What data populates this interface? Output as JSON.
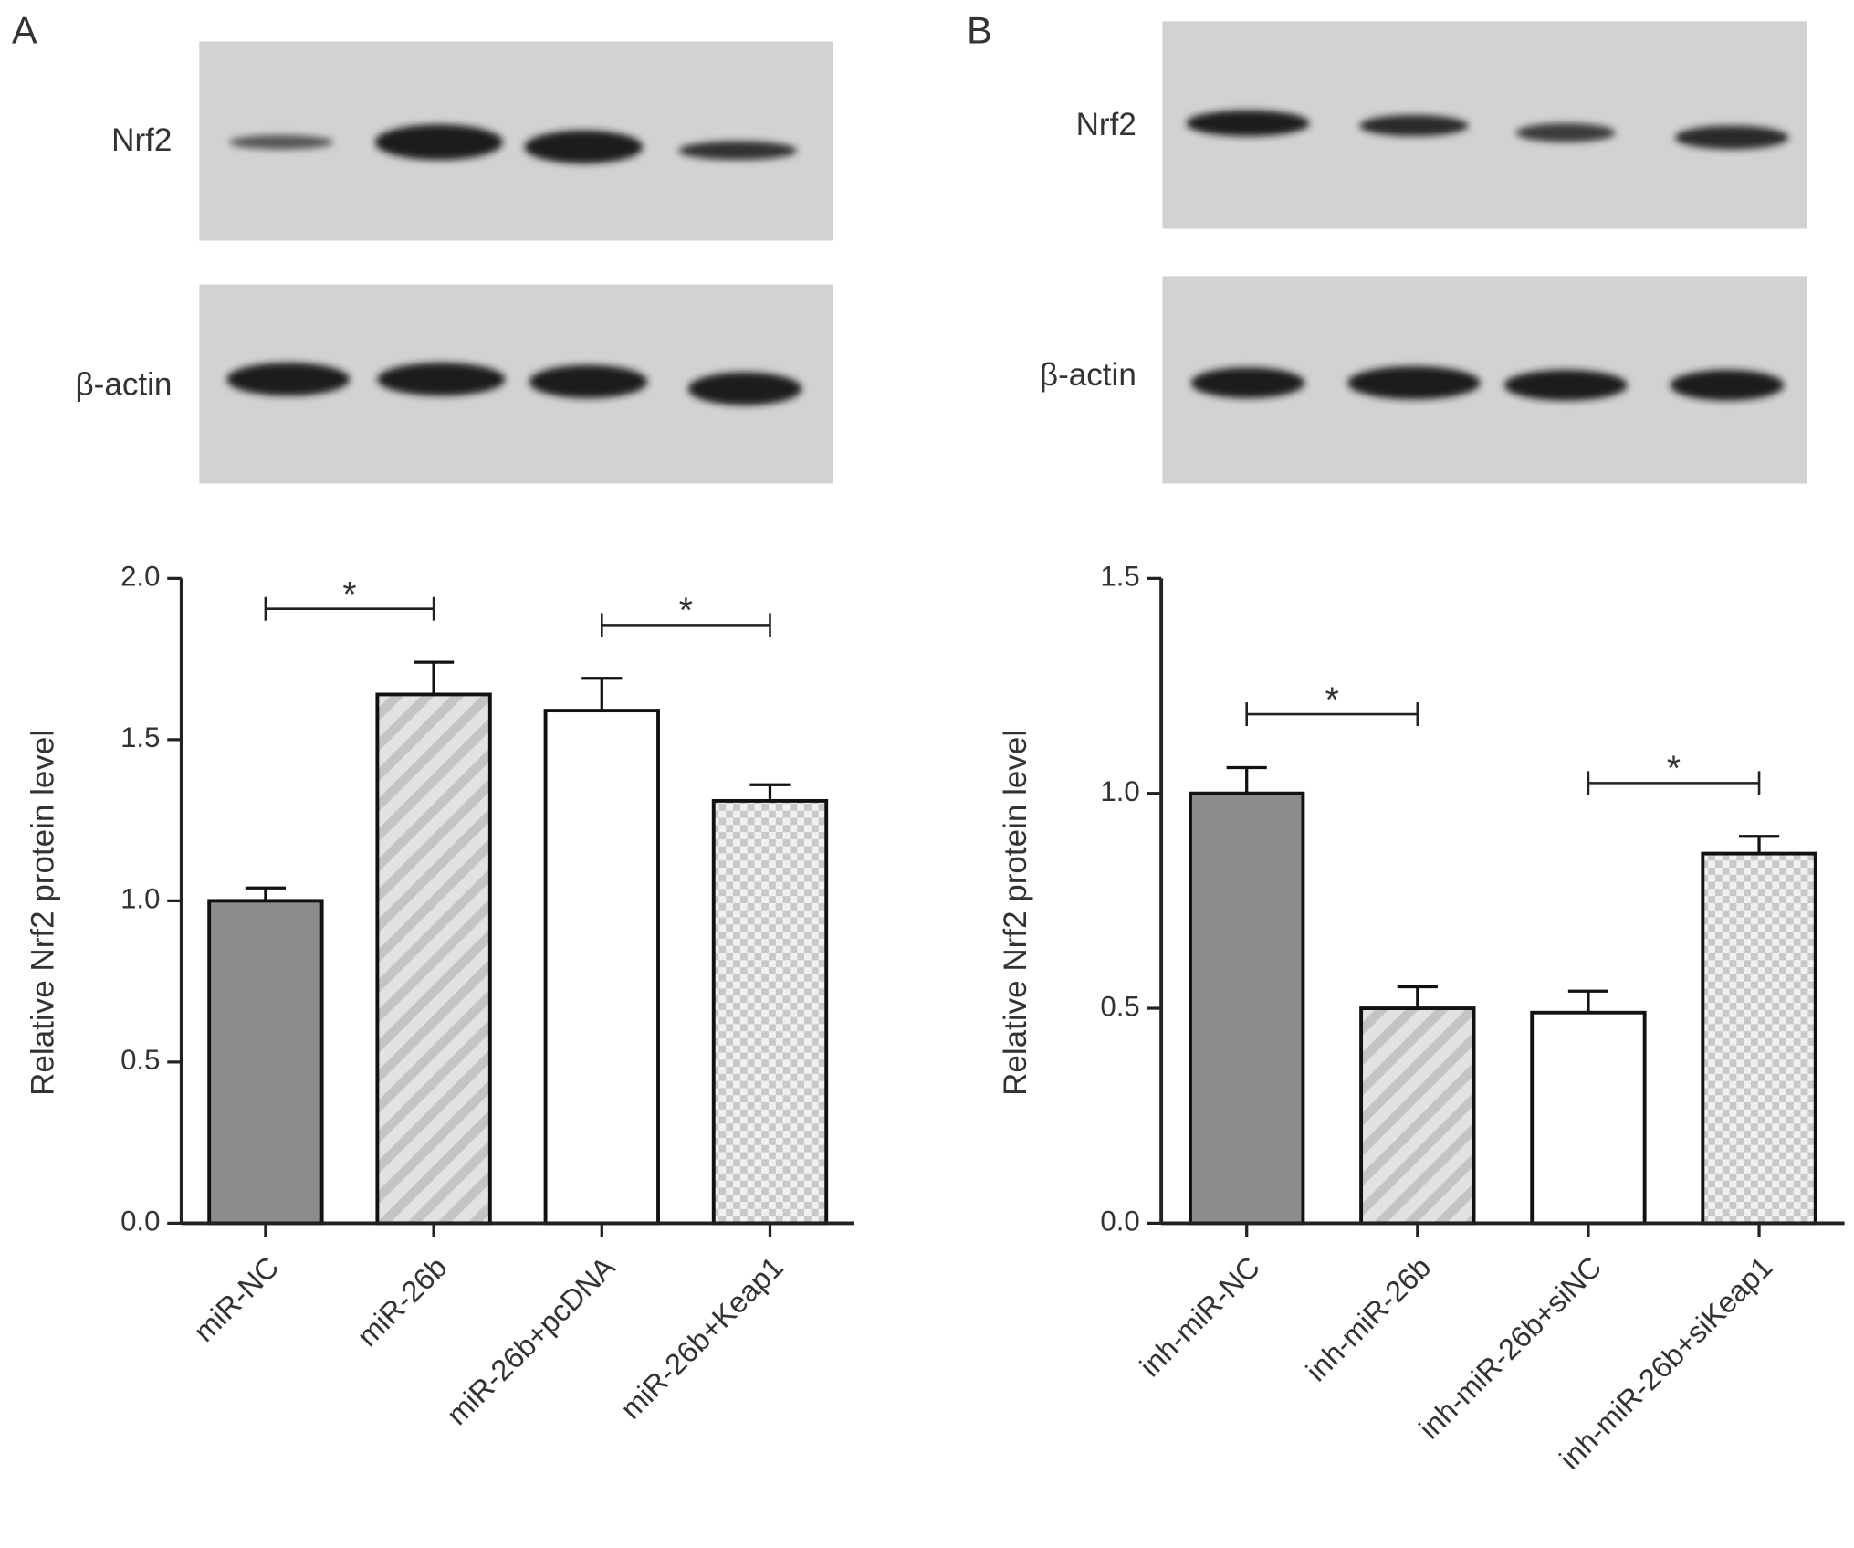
{
  "chart_data": [
    {
      "type": "bar",
      "panel_label": "A",
      "blot_labels": [
        "Nrf2",
        "β-actin"
      ],
      "ylabel": "Relative Nrf2 protein level",
      "categories": [
        "miR-NC",
        "miR-26b",
        "miR-26b+pcDNA",
        "miR-26b+Keap1"
      ],
      "values": [
        1.0,
        1.64,
        1.59,
        1.31
      ],
      "errors": [
        0.04,
        0.1,
        0.1,
        0.05
      ],
      "patterns": [
        "solid",
        "hatch",
        "blank",
        "check"
      ],
      "ylim": [
        0,
        2
      ],
      "yticks": [
        {
          "value": 0,
          "label": "0.0"
        },
        0.5,
        {
          "value": 1,
          "label": "1.0"
        },
        1.5,
        {
          "value": 2,
          "label": "2.0"
        }
      ],
      "significance": [
        {
          "label": "*",
          "between": [
            0,
            1
          ]
        },
        {
          "label": "*",
          "between": [
            2,
            3
          ]
        }
      ]
    },
    {
      "type": "bar",
      "panel_label": "B",
      "blot_labels": [
        "Nrf2",
        "β-actin"
      ],
      "ylabel": "Relative Nrf2 protein level",
      "categories": [
        "inh-miR-NC",
        "inh-miR-26b",
        "inh-miR-26b+siNC",
        "inh-miR-26b+siKeap1"
      ],
      "values": [
        1.0,
        0.5,
        0.49,
        0.86
      ],
      "errors": [
        0.06,
        0.05,
        0.05,
        0.04
      ],
      "patterns": [
        "solid",
        "hatch",
        "blank",
        "check"
      ],
      "ylim": [
        0,
        1.5
      ],
      "yticks": [
        {
          "value": 0,
          "label": "0.0"
        },
        0.5,
        {
          "value": 1,
          "label": "1.0"
        },
        1.5
      ],
      "significance": [
        {
          "label": "*",
          "between": [
            0,
            1
          ]
        },
        {
          "label": "*",
          "between": [
            2,
            3
          ]
        }
      ]
    }
  ]
}
